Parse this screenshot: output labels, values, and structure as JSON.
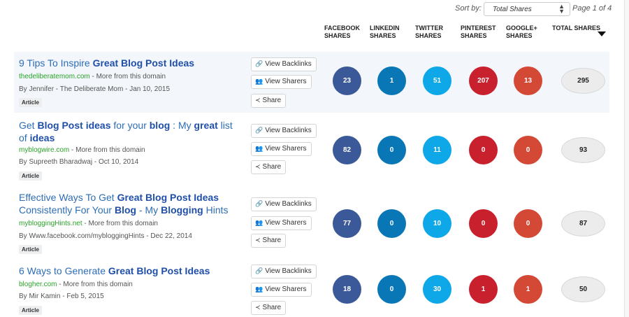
{
  "sort": {
    "label": "Sort by:",
    "selected": "Total Shares",
    "page": "Page 1 of 4"
  },
  "columns": {
    "facebook": [
      "FACEBOOK",
      "SHARES"
    ],
    "linkedin": [
      "LINKEDIN",
      "SHARES"
    ],
    "twitter": [
      "TWITTER",
      "SHARES"
    ],
    "pinterest": [
      "PINTEREST",
      "SHARES"
    ],
    "googleplus": [
      "GOOGLE+",
      "SHARES"
    ],
    "total": "TOTAL SHARES"
  },
  "buttons": {
    "backlinks": "View Backlinks",
    "sharers": "View Sharers",
    "share": "Share"
  },
  "colors": {
    "facebook": "#3b5998",
    "linkedin": "#0977b5",
    "twitter": "#0ea7e8",
    "pinterest": "#c8202d",
    "googleplus": "#d44836",
    "link": "#2d6db5",
    "domain": "#2aa32a"
  },
  "results": [
    {
      "title_parts": [
        [
          "9 Tips To Inspire ",
          false
        ],
        [
          "Great Blog Post Ideas",
          true
        ]
      ],
      "domain": "thedeliberatemom.com",
      "more": " - More from this domain",
      "byline": "By Jennifer - The Deliberate Mom - Jan 10, 2015",
      "type": "Article",
      "facebook": "23",
      "linkedin": "1",
      "twitter": "51",
      "pinterest": "207",
      "googleplus": "13",
      "total": "295"
    },
    {
      "title_parts": [
        [
          "Get ",
          false
        ],
        [
          "Blog Post ideas",
          true
        ],
        [
          " for your ",
          false
        ],
        [
          "blog",
          true
        ],
        [
          " : My ",
          false
        ],
        [
          "great",
          true
        ],
        [
          " list of ",
          false
        ],
        [
          "ideas",
          true
        ]
      ],
      "domain": "myblogwire.com",
      "more": " - More from this domain",
      "byline": "By Supreeth Bharadwaj - Oct 10, 2014",
      "type": "Article",
      "facebook": "82",
      "linkedin": "0",
      "twitter": "11",
      "pinterest": "0",
      "googleplus": "0",
      "total": "93"
    },
    {
      "title_parts": [
        [
          "Effective Ways  To Get ",
          false
        ],
        [
          "Great Blog Post Ideas",
          true
        ],
        [
          " Consistently For Your ",
          false
        ],
        [
          "Blog",
          true
        ],
        [
          " - My ",
          false
        ],
        [
          "Blogging",
          true
        ],
        [
          " Hints",
          false
        ]
      ],
      "domain": "mybloggingHints.net",
      "more": " - More from this domain",
      "byline": "By Www.facebook.com/mybloggingHints - Dec 22, 2014",
      "type": "Article",
      "facebook": "77",
      "linkedin": "0",
      "twitter": "10",
      "pinterest": "0",
      "googleplus": "0",
      "total": "87"
    },
    {
      "title_parts": [
        [
          "6 Ways to Generate ",
          false
        ],
        [
          "Great Blog Post Ideas",
          true
        ]
      ],
      "domain": "blogher.com",
      "more": " - More from this domain",
      "byline": "By Mir Kamin - Feb 5, 2015",
      "type": "Article",
      "facebook": "18",
      "linkedin": "0",
      "twitter": "30",
      "pinterest": "1",
      "googleplus": "1",
      "total": "50"
    }
  ]
}
